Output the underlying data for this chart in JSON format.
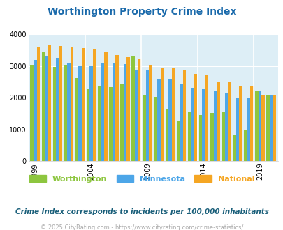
{
  "title": "Worthington Property Crime Index",
  "subtitle": "Crime Index corresponds to incidents per 100,000 inhabitants",
  "footer": "© 2025 CityRating.com - https://www.cityrating.com/crime-statistics/",
  "years": [
    1999,
    2000,
    2001,
    2002,
    2003,
    2004,
    2005,
    2006,
    2007,
    2008,
    2009,
    2010,
    2011,
    2012,
    2013,
    2014,
    2015,
    2016,
    2017,
    2018,
    2019,
    2020
  ],
  "worthington": [
    3050,
    3450,
    2980,
    3050,
    2630,
    2260,
    2350,
    2330,
    2430,
    3300,
    2080,
    2020,
    1620,
    1280,
    1550,
    1460,
    1510,
    1570,
    830,
    1000,
    2200,
    2090
  ],
  "minnesota": [
    3200,
    3330,
    3270,
    3100,
    3030,
    3030,
    3080,
    3080,
    3060,
    2860,
    2860,
    2580,
    2590,
    2450,
    2310,
    2300,
    2220,
    2140,
    2010,
    1990,
    2200,
    2090
  ],
  "national": [
    3620,
    3650,
    3630,
    3600,
    3560,
    3520,
    3450,
    3340,
    3290,
    3210,
    3050,
    2960,
    2930,
    2870,
    2760,
    2730,
    2500,
    2510,
    2370,
    2370,
    2100,
    2090
  ],
  "worthington_color": "#8dc63f",
  "minnesota_color": "#4da6e8",
  "national_color": "#f5a623",
  "plot_bg": "#ddeef6",
  "title_color": "#1a6aab",
  "subtitle_color": "#1a5f7a",
  "footer_color": "#aaaaaa",
  "ylim": [
    0,
    4000
  ],
  "yticks": [
    0,
    1000,
    2000,
    3000,
    4000
  ],
  "label_years": [
    1999,
    2004,
    2009,
    2014,
    2019
  ],
  "separator_before": [
    2004,
    2009,
    2014,
    2019
  ]
}
